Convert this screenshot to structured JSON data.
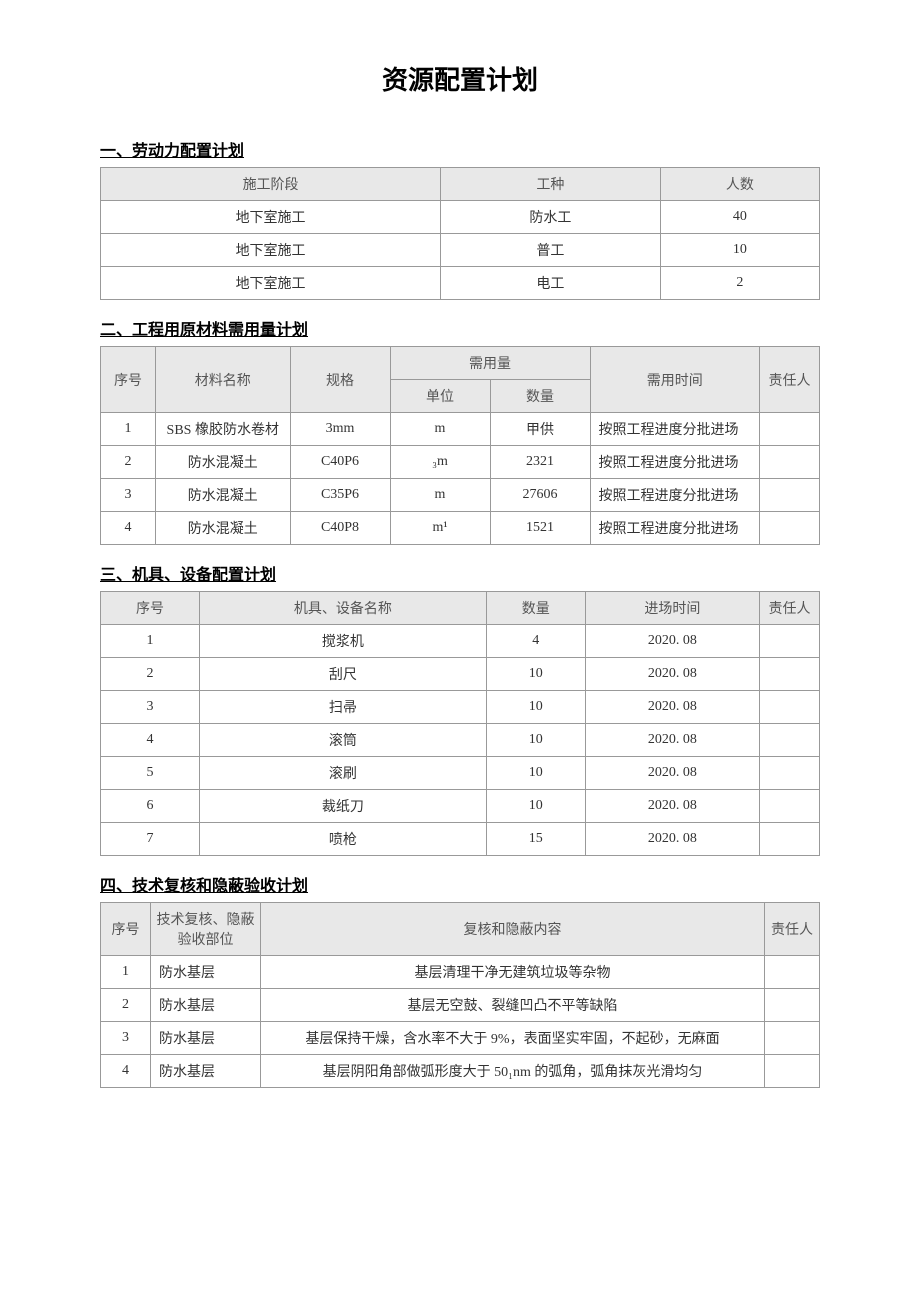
{
  "title": "资源配置计划",
  "section1": {
    "heading": "一、劳动力配置计划",
    "headers": [
      "施工阶段",
      "工种",
      "人数"
    ],
    "rows": [
      [
        "地下室施工",
        "防水工",
        "40"
      ],
      [
        "地下室施工",
        "普工",
        "10"
      ],
      [
        "地下室施工",
        "电工",
        "2"
      ]
    ]
  },
  "section2": {
    "heading": "二、工程用原材料需用量计划",
    "headers": {
      "seq": "序号",
      "name": "材料名称",
      "spec": "规格",
      "demand": "需用量",
      "unit": "单位",
      "qty": "数量",
      "time": "需用时间",
      "resp": "责任人"
    },
    "rows": [
      {
        "seq": "1",
        "name": "SBS 橡胶防水卷材",
        "spec": "3mm",
        "unit": "m",
        "qty": "甲供",
        "time": "按照工程进度分批进场",
        "resp": ""
      },
      {
        "seq": "2",
        "name": "防水混凝土",
        "spec": "C40P6",
        "unit": "₃m",
        "qty": "2321",
        "time": "按照工程进度分批进场",
        "resp": ""
      },
      {
        "seq": "3",
        "name": "防水混凝土",
        "spec": "C35P6",
        "unit": "m",
        "qty": "27606",
        "time": "按照工程进度分批进场",
        "resp": ""
      },
      {
        "seq": "4",
        "name": "防水混凝土",
        "spec": "C40P8",
        "unit": "m¹",
        "qty": "1521",
        "time": "按照工程进度分批进场",
        "resp": ""
      }
    ]
  },
  "section3": {
    "heading": "三、机具、设备配置计划",
    "headers": [
      "序号",
      "机具、设备名称",
      "数量",
      "进场时间",
      "责任人"
    ],
    "rows": [
      [
        "1",
        "搅浆机",
        "4",
        "2020. 08",
        ""
      ],
      [
        "2",
        "刮尺",
        "10",
        "2020. 08",
        ""
      ],
      [
        "3",
        "扫帚",
        "10",
        "2020. 08",
        ""
      ],
      [
        "4",
        "滚筒",
        "10",
        "2020. 08",
        ""
      ],
      [
        "5",
        "滚刷",
        "10",
        "2020. 08",
        ""
      ],
      [
        "6",
        "裁纸刀",
        "10",
        "2020. 08",
        ""
      ],
      [
        "7",
        "喷枪",
        "15",
        "2020. 08",
        ""
      ]
    ]
  },
  "section4": {
    "heading": "四、技术复核和隐蔽验收计划",
    "headers": [
      "序号",
      "技术复核、隐蔽验收部位",
      "复核和隐蔽内容",
      "责任人"
    ],
    "rows": [
      [
        "1",
        "防水基层",
        "基层清理干净无建筑垃圾等杂物",
        ""
      ],
      [
        "2",
        "防水基层",
        "基层无空鼓、裂缝凹凸不平等缺陷",
        ""
      ],
      [
        "3",
        "防水基层",
        "基层保持干燥，含水率不大于 9%，表面坚实牢固，不起砂，无麻面",
        ""
      ],
      [
        "4",
        "防水基层",
        "基层阴阳角部做弧形度大于 50₁nm 的弧角，弧角抹灰光滑均匀",
        ""
      ]
    ]
  }
}
